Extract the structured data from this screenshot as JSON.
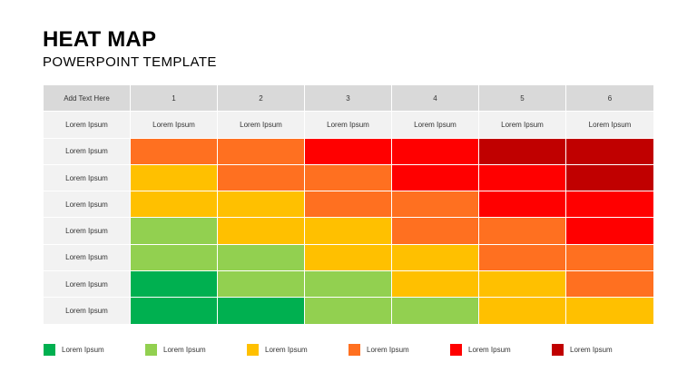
{
  "title": "HEAT MAP",
  "subtitle": "POWERPOINT TEMPLATE",
  "table": {
    "corner": "Add Text Here",
    "columns": [
      "1",
      "2",
      "3",
      "4",
      "5",
      "6"
    ],
    "subheader_label": "Lorem Ipsum",
    "subheaders": [
      "Lorem Ipsum",
      "Lorem Ipsum",
      "Lorem Ipsum",
      "Lorem Ipsum",
      "Lorem Ipsum",
      "Lorem Ipsum"
    ],
    "rows": [
      {
        "label": "Lorem Ipsum",
        "levels": [
          4,
          4,
          5,
          5,
          6,
          6
        ]
      },
      {
        "label": "Lorem Ipsum",
        "levels": [
          3,
          4,
          4,
          5,
          5,
          6
        ]
      },
      {
        "label": "Lorem Ipsum",
        "levels": [
          3,
          3,
          4,
          4,
          5,
          5
        ]
      },
      {
        "label": "Lorem Ipsum",
        "levels": [
          2,
          3,
          3,
          4,
          4,
          5
        ]
      },
      {
        "label": "Lorem Ipsum",
        "levels": [
          2,
          2,
          3,
          3,
          4,
          4
        ]
      },
      {
        "label": "Lorem Ipsum",
        "levels": [
          1,
          2,
          2,
          3,
          3,
          4
        ]
      },
      {
        "label": "Lorem Ipsum",
        "levels": [
          1,
          1,
          2,
          2,
          3,
          3
        ]
      }
    ]
  },
  "scale_colors": {
    "1": "#00b050",
    "2": "#92d050",
    "3": "#ffc000",
    "4": "#ff7020",
    "5": "#ff0000",
    "6": "#c00000"
  },
  "legend": [
    {
      "level": 1,
      "label": "Lorem Ipsum"
    },
    {
      "level": 2,
      "label": "Lorem Ipsum"
    },
    {
      "level": 3,
      "label": "Lorem Ipsum"
    },
    {
      "level": 4,
      "label": "Lorem Ipsum"
    },
    {
      "level": 5,
      "label": "Lorem Ipsum"
    },
    {
      "level": 6,
      "label": "Lorem Ipsum"
    }
  ]
}
